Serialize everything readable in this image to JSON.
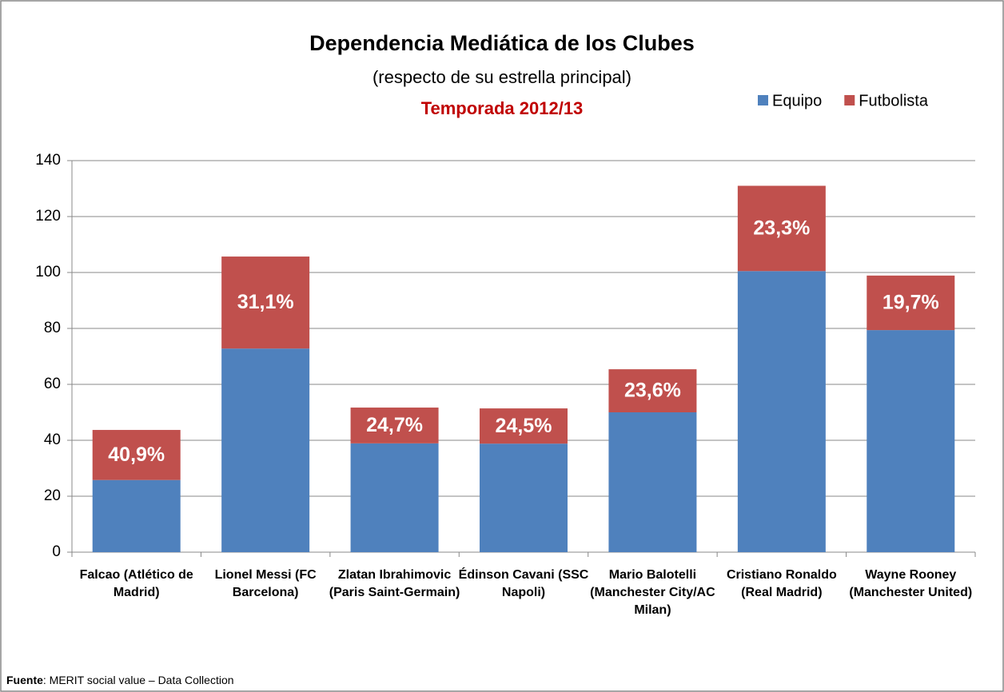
{
  "chart_data": {
    "type": "stacked_bar",
    "title": "Dependencia Mediática de los Clubes",
    "subtitle": "(respecto de su estrella principal)",
    "season": "Temporada 2012/13",
    "categories": [
      "Falcao (Atlético de Madrid)",
      "Lionel Messi (FC Barcelona)",
      "Zlatan Ibrahimovic (Paris Saint-Germain)",
      "Édinson Cavani (SSC Napoli)",
      "Mario Balotelli (Manchester City/AC Milan)",
      "Cristiano Ronaldo (Real Madrid)",
      "Wayne Rooney (Manchester United)"
    ],
    "series": [
      {
        "name": "Equipo",
        "color": "#4f81bd",
        "values": [
          25.8,
          72.8,
          38.9,
          38.8,
          50,
          100.5,
          79.4
        ]
      },
      {
        "name": "Futbolista",
        "color": "#c0504d",
        "values": [
          17.9,
          32.9,
          12.8,
          12.6,
          15.4,
          30.5,
          19.5
        ]
      }
    ],
    "share_labels": [
      {
        "value": 40.9,
        "label": "40,9%"
      },
      {
        "value": 31.1,
        "label": "31,1%"
      },
      {
        "value": 24.7,
        "label": "24,7%"
      },
      {
        "value": 24.5,
        "label": "24,5%"
      },
      {
        "value": 23.6,
        "label": "23,6%"
      },
      {
        "value": 23.3,
        "label": "23,3%"
      },
      {
        "value": 19.7,
        "label": "19,7%"
      }
    ],
    "ylim": [
      0,
      140
    ],
    "yticks": [
      0,
      20,
      40,
      60,
      80,
      100,
      120,
      140
    ],
    "grid": true,
    "legend": "top-right",
    "source": {
      "label": "Fuente",
      "text": ": MERIT social value – Data Collection"
    }
  }
}
